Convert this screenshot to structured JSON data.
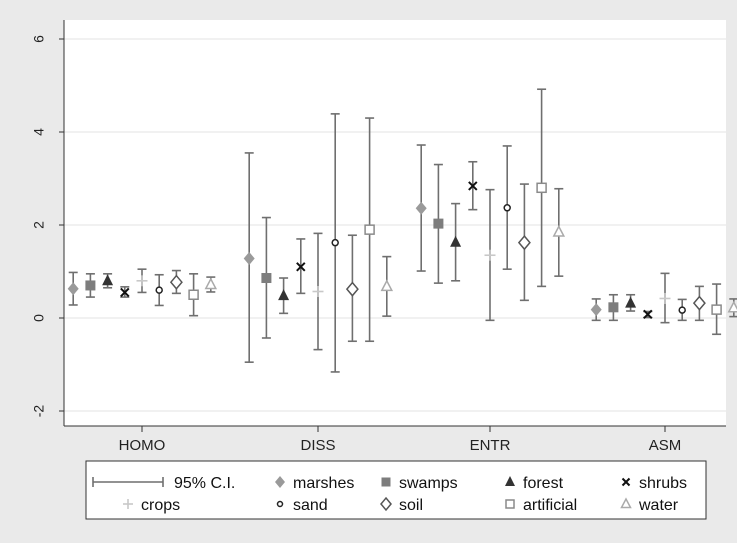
{
  "chart_data": {
    "type": "scatter",
    "subtype": "point-estimate with 95% confidence interval error bars",
    "title": "",
    "xlabel": "",
    "ylabel": "",
    "categories": [
      "HOMO",
      "DISS",
      "ENTR",
      "ASM"
    ],
    "ylim": [
      -2.5,
      6.2
    ],
    "yticks": [
      -2,
      0,
      2,
      4,
      6
    ],
    "ytick_labels": [
      "-2",
      "0",
      "2",
      "4",
      "6"
    ],
    "grid": "horizontal",
    "legend_position": "bottom",
    "ci_legend_label": "95% C.I.",
    "series": [
      {
        "name": "marshes",
        "marker": "filled-diamond",
        "color": "#9a9a9a",
        "estimates": [
          0.63,
          1.28,
          2.36,
          0.18
        ],
        "lower": [
          0.28,
          -0.95,
          1.01,
          -0.05
        ],
        "upper": [
          0.98,
          3.55,
          3.72,
          0.41
        ]
      },
      {
        "name": "swamps",
        "marker": "filled-square",
        "color": "#7d7d7d",
        "estimates": [
          0.7,
          0.86,
          2.03,
          0.23
        ],
        "lower": [
          0.45,
          -0.43,
          0.75,
          -0.05
        ],
        "upper": [
          0.95,
          2.16,
          3.3,
          0.5
        ]
      },
      {
        "name": "forest",
        "marker": "filled-triangle",
        "color": "#333333",
        "estimates": [
          0.8,
          0.48,
          1.63,
          0.32
        ],
        "lower": [
          0.65,
          0.1,
          0.8,
          0.15
        ],
        "upper": [
          0.95,
          0.86,
          2.46,
          0.5
        ]
      },
      {
        "name": "shrubs",
        "marker": "x",
        "color": "#111111",
        "estimates": [
          0.55,
          1.1,
          2.84,
          0.08
        ],
        "lower": [
          0.45,
          0.53,
          2.33,
          0.01
        ],
        "upper": [
          0.67,
          1.7,
          3.36,
          0.14
        ]
      },
      {
        "name": "crops",
        "marker": "plus",
        "color": "#c8c8c8",
        "estimates": [
          0.8,
          0.57,
          1.35,
          0.42
        ],
        "lower": [
          0.55,
          -0.68,
          -0.05,
          -0.1
        ],
        "upper": [
          1.05,
          1.82,
          2.76,
          0.96
        ]
      },
      {
        "name": "sand",
        "marker": "hollow-circle",
        "color": "#222222",
        "estimates": [
          0.6,
          1.62,
          2.37,
          0.17
        ],
        "lower": [
          0.27,
          -1.16,
          1.05,
          -0.05
        ],
        "upper": [
          0.93,
          4.39,
          3.7,
          0.4
        ]
      },
      {
        "name": "soil",
        "marker": "hollow-diamond",
        "color": "#555555",
        "estimates": [
          0.77,
          0.62,
          1.62,
          0.32
        ],
        "lower": [
          0.53,
          -0.5,
          0.38,
          -0.05
        ],
        "upper": [
          1.02,
          1.78,
          2.88,
          0.68
        ]
      },
      {
        "name": "artificial",
        "marker": "hollow-square",
        "color": "#8a8a8a",
        "estimates": [
          0.5,
          1.9,
          2.8,
          0.18
        ],
        "lower": [
          0.05,
          -0.5,
          0.68,
          -0.35
        ],
        "upper": [
          0.95,
          4.3,
          4.92,
          0.73
        ]
      },
      {
        "name": "water",
        "marker": "hollow-triangle",
        "color": "#aaaaaa",
        "estimates": [
          0.72,
          0.68,
          1.85,
          0.22
        ],
        "lower": [
          0.56,
          0.04,
          0.9,
          0.03
        ],
        "upper": [
          0.88,
          1.32,
          2.78,
          0.41
        ]
      }
    ]
  }
}
